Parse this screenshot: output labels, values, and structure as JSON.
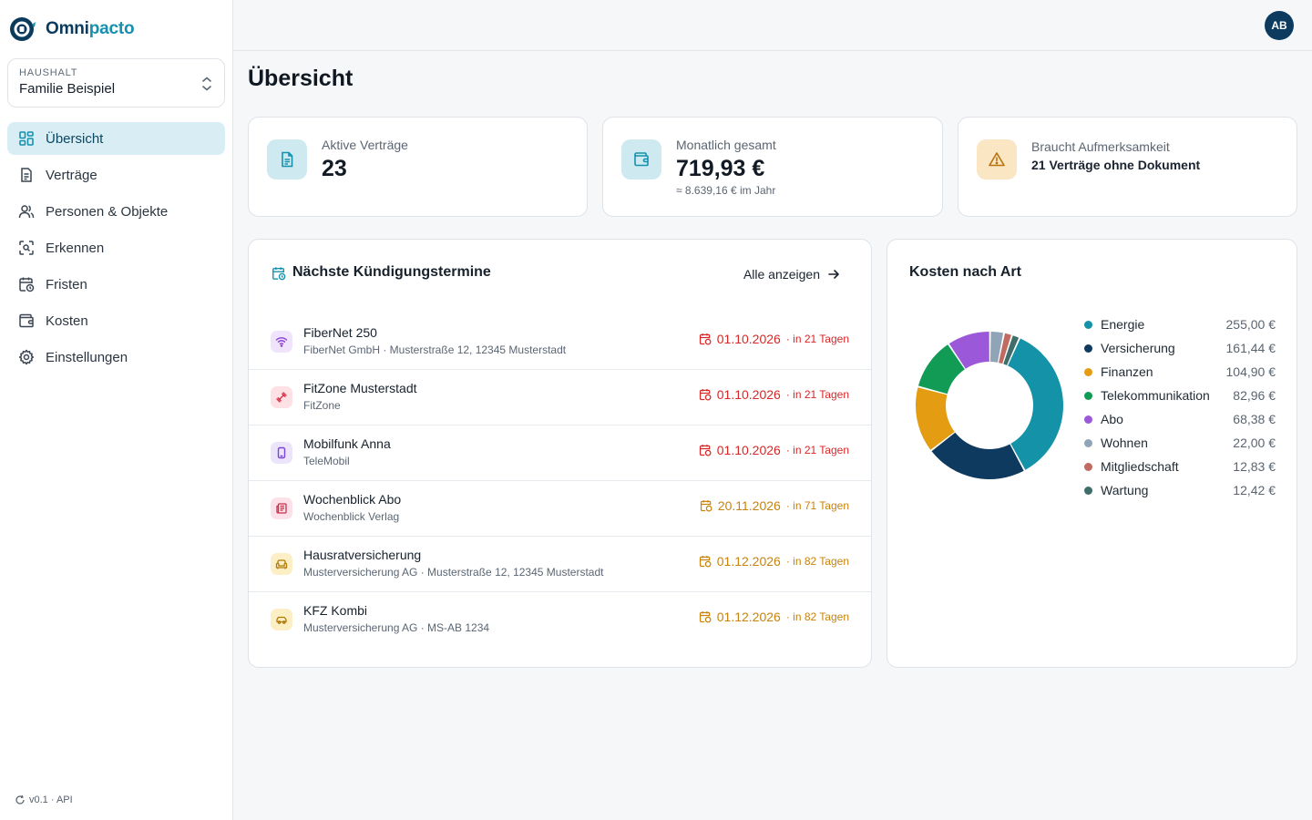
{
  "app": {
    "logo_part1": "Omni",
    "logo_part2": "pacto",
    "brand_color": "#0a3a5c",
    "accent_color": "#1591ae",
    "version": "v0.1 · API"
  },
  "household": {
    "label": "HAUSHALT",
    "value": "Familie Beispiel"
  },
  "nav": {
    "items": [
      {
        "label": "Übersicht",
        "icon": "grid-icon",
        "active": true
      },
      {
        "label": "Verträge",
        "icon": "document-icon"
      },
      {
        "label": "Personen & Objekte",
        "icon": "users-icon"
      },
      {
        "label": "Erkennen",
        "icon": "scan-icon"
      },
      {
        "label": "Fristen",
        "icon": "calendar-clock-icon"
      },
      {
        "label": "Kosten",
        "icon": "wallet-icon"
      },
      {
        "label": "Einstellungen",
        "icon": "gear-icon"
      }
    ]
  },
  "user": {
    "initials": "AB"
  },
  "page": {
    "title": "Übersicht"
  },
  "stats": {
    "active": {
      "label": "Aktive Verträge",
      "value": "23"
    },
    "monthly": {
      "label": "Monatlich gesamt",
      "value": "719,93 €",
      "sub": "≈ 8.639,16 € im Jahr"
    },
    "attention": {
      "label": "Braucht Aufmerksamkeit",
      "text": "21 Verträge ohne Dokument"
    }
  },
  "deadlines": {
    "title": "Nächste Kündigungstermine",
    "show_all": "Alle anzeigen",
    "rows": [
      {
        "name": "FiberNet 250",
        "sub": "FiberNet GmbH · Musterstraße 12, 12345 Musterstadt",
        "date": "01.10.2026",
        "in": "· in 21 Tagen",
        "urgency": "red",
        "icon": "wifi-icon"
      },
      {
        "name": "FitZone Musterstadt",
        "sub": "FitZone",
        "date": "01.10.2026",
        "in": "· in 21 Tagen",
        "urgency": "red",
        "icon": "dumbbell-icon"
      },
      {
        "name": "Mobilfunk Anna",
        "sub": "TeleMobil",
        "date": "01.10.2026",
        "in": "· in 21 Tagen",
        "urgency": "red",
        "icon": "phone-icon"
      },
      {
        "name": "Wochenblick Abo",
        "sub": "Wochenblick Verlag",
        "date": "20.11.2026",
        "in": "· in 71 Tagen",
        "urgency": "amber",
        "icon": "newspaper-icon"
      },
      {
        "name": "Hausratversicherung",
        "sub": "Musterversicherung AG · Musterstraße 12, 12345 Musterstadt",
        "date": "01.12.2026",
        "in": "· in 82 Tagen",
        "urgency": "amber",
        "icon": "sofa-icon"
      },
      {
        "name": "KFZ Kombi",
        "sub": "Musterversicherung AG · MS-AB 1234",
        "date": "01.12.2026",
        "in": "· in 82 Tagen",
        "urgency": "amber",
        "icon": "car-icon"
      }
    ]
  },
  "costs": {
    "title": "Kosten nach Art"
  },
  "chart_data": {
    "type": "pie",
    "categories": [
      "Energie",
      "Versicherung",
      "Finanzen",
      "Telekommunikation",
      "Abo",
      "Wohnen",
      "Mitgliedschaft",
      "Wartung"
    ],
    "values": [
      255.0,
      161.44,
      104.9,
      82.96,
      68.38,
      22.0,
      12.83,
      12.42
    ],
    "labels": [
      "255,00 €",
      "161,44 €",
      "104,90 €",
      "82,96 €",
      "68,38 €",
      "22,00 €",
      "12,83 €",
      "12,42 €"
    ],
    "colors": [
      "#1392a8",
      "#0f3a5f",
      "#e49d12",
      "#119b55",
      "#9b59d9",
      "#90a4b8",
      "#c06a62",
      "#3f6e6a"
    ],
    "legend": "right"
  }
}
